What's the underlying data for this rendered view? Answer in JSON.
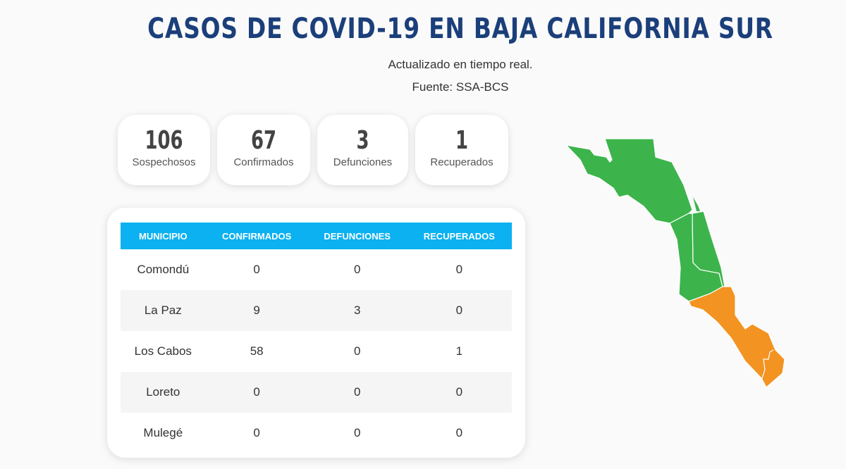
{
  "header": {
    "title": "CASOS DE COVID-19 EN BAJA CALIFORNIA SUR",
    "subtitle": "Actualizado en tiempo real.",
    "source": "Fuente: SSA-BCS"
  },
  "stats": [
    {
      "value": "106",
      "label": "Sospechosos"
    },
    {
      "value": "67",
      "label": "Confirmados"
    },
    {
      "value": "3",
      "label": "Defunciones"
    },
    {
      "value": "1",
      "label": "Recuperados"
    }
  ],
  "table": {
    "headers": [
      "MUNICIPIO",
      "CONFIRMADOS",
      "DEFUNCIONES",
      "RECUPERADOS"
    ],
    "rows": [
      [
        "Comondú",
        "0",
        "0",
        "0"
      ],
      [
        "La Paz",
        "9",
        "3",
        "0"
      ],
      [
        "Los Cabos",
        "58",
        "0",
        "1"
      ],
      [
        "Loreto",
        "0",
        "0",
        "0"
      ],
      [
        "Mulegé",
        "0",
        "0",
        "0"
      ]
    ]
  },
  "map": {
    "colors": {
      "no_cases": "#3cb44b",
      "with_cases": "#f39322",
      "header": "#0bb1f0",
      "title": "#1b3f7a"
    }
  }
}
